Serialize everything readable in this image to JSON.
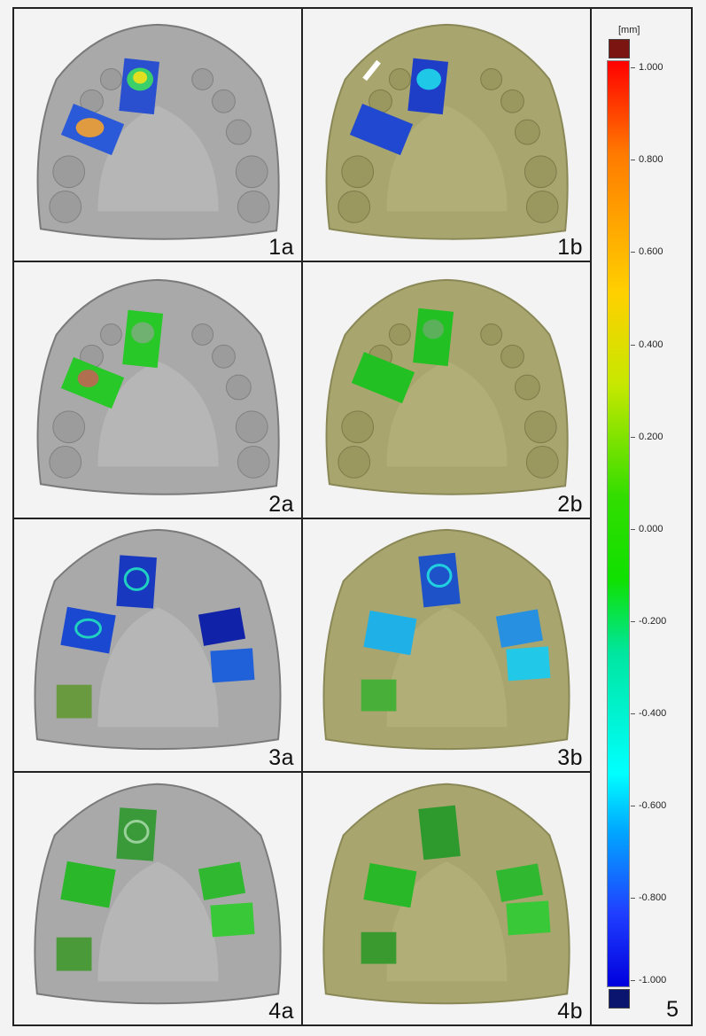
{
  "panels": [
    {
      "label": "1a"
    },
    {
      "label": "1b"
    },
    {
      "label": "2a"
    },
    {
      "label": "2b"
    },
    {
      "label": "3a"
    },
    {
      "label": "3b"
    },
    {
      "label": "4a"
    },
    {
      "label": "4b"
    }
  ],
  "scale": {
    "unit": "[mm]",
    "ticks": [
      "1.000",
      "0.800",
      "0.600",
      "0.400",
      "0.200",
      "0.000",
      "-0.200",
      "-0.400",
      "-0.600",
      "-0.800",
      "-1.000"
    ],
    "number": "5"
  },
  "colors": {
    "model_a": "#a9a9a9",
    "model_b": "#a8a56e",
    "over": "#7a1512",
    "under": "#0a1570"
  }
}
